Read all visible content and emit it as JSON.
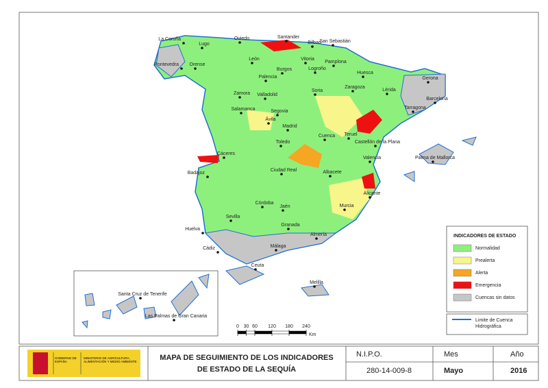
{
  "cities": [
    "La Coruña",
    "Lugo",
    "Oviedo",
    "Santander",
    "Bilbao",
    "San Sebastián",
    "Pontevedra",
    "Orense",
    "León",
    "Vitoria",
    "Pamplona",
    "Burgos",
    "Logroño",
    "Palencia",
    "Huesca",
    "Gerona",
    "Zaragoza",
    "Lérida",
    "Valladolid",
    "Soria",
    "Zamora",
    "Barcelona",
    "Tarragona",
    "Salamanca",
    "Segovia",
    "Ávila",
    "Madrid",
    "Teruel",
    "Cuenca",
    "Castellón de la Plana",
    "Toledo",
    "Cáceres",
    "Palma de Mallorca",
    "Valencia",
    "Badajoz",
    "Ciudad Real",
    "Albacete",
    "Alicante",
    "Córdoba",
    "Murcia",
    "Jaén",
    "Sevilla",
    "Granada",
    "Huelva",
    "Almería",
    "Cádiz",
    "Málaga",
    "Ceuta",
    "Melilla",
    "Santa Cruz de Tenerife",
    "Las Palmas de Gran Canaria"
  ],
  "legend": {
    "title": "INDICADORES DE ESTADO",
    "items": [
      {
        "label": "Normalidad",
        "color": "#8ef07c"
      },
      {
        "label": "Prealerta",
        "color": "#f8f58a"
      },
      {
        "label": "Alerta",
        "color": "#f5a623"
      },
      {
        "label": "Emergencia",
        "color": "#ee1111"
      },
      {
        "label": "Cuencas sin datos",
        "color": "#c6c6c6"
      }
    ],
    "boundary": {
      "lines": [
        "Limite de Cuenca",
        "Hidrográfica"
      ],
      "color": "#1f6fd6"
    }
  },
  "scale": {
    "ticks": [
      0,
      30,
      60,
      120,
      180,
      240
    ],
    "unit": "Km"
  },
  "footer": {
    "logo": {
      "gov": "GOBIERNO DE ESPAÑA",
      "ministry": "MINISTERIO DE AGRICULTURA, ALIMENTACIÓN Y MEDIO AMBIENTE"
    },
    "title": [
      "MAPA DE SEGUIMIENTO DE LOS INDICADORES",
      "DE ESTADO DE LA SEQUÍA"
    ],
    "nipo_label": "N.I.P.O.",
    "nipo": "280-14-009-8",
    "month_label": "Mes",
    "month": "Mayo",
    "year_label": "Año",
    "year": "2016"
  }
}
